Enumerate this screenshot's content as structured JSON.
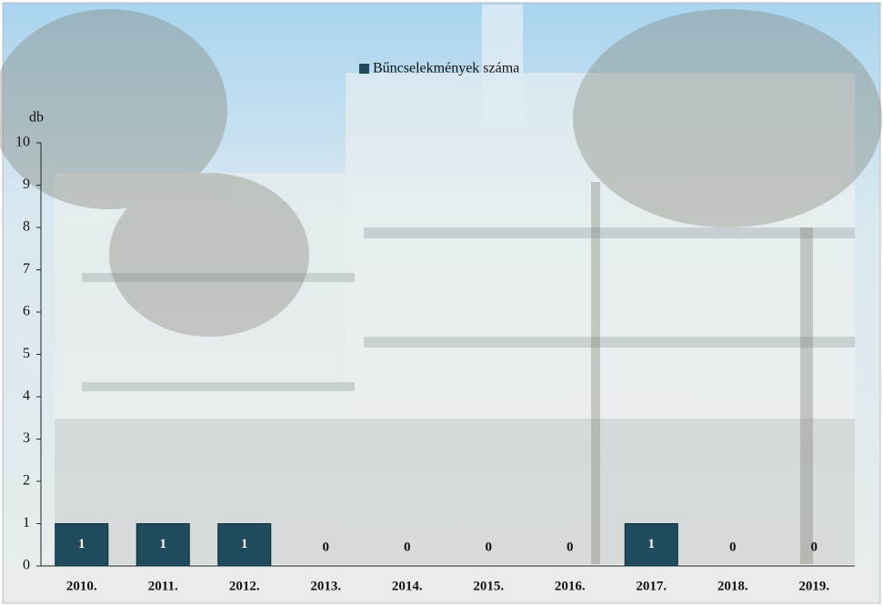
{
  "chart_data": {
    "type": "bar",
    "legend": "Bűncselekmények száma",
    "y_label": "db",
    "categories": [
      "2010.",
      "2011.",
      "2012.",
      "2013.",
      "2014.",
      "2015.",
      "2016.",
      "2017.",
      "2018.",
      "2019."
    ],
    "values": [
      1,
      1,
      1,
      0,
      0,
      0,
      0,
      1,
      0,
      0
    ],
    "color": "#1f4b5c",
    "ylim": [
      0,
      10
    ],
    "yticks": [
      0,
      1,
      2,
      3,
      4,
      5,
      6,
      7,
      8,
      9,
      10
    ],
    "grid": false
  }
}
